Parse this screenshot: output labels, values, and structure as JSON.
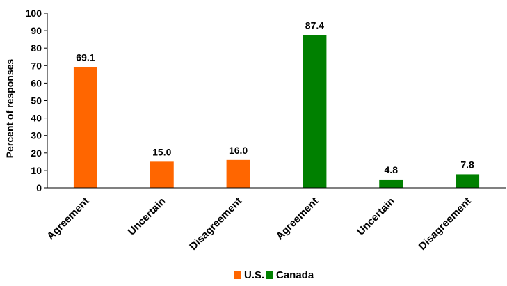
{
  "chart_data": {
    "type": "bar",
    "categories": [
      "Agreement",
      "Uncertain",
      "Disagreement",
      "Agreement",
      "Uncertain",
      "Disagreement"
    ],
    "series": [
      {
        "name": "U.S.",
        "color": "#FF6600",
        "values": [
          69.1,
          15.0,
          16.0,
          null,
          null,
          null
        ]
      },
      {
        "name": "Canada",
        "color": "#008000",
        "values": [
          null,
          null,
          null,
          87.4,
          4.8,
          7.8
        ]
      }
    ],
    "data_labels": [
      "69.1",
      "15.0",
      "16.0",
      "87.4",
      "4.8",
      "7.8"
    ],
    "title": "",
    "xlabel": "",
    "ylabel": "Percent of responses",
    "ylim": [
      0,
      100
    ],
    "yticks": [
      0,
      10,
      20,
      30,
      40,
      50,
      60,
      70,
      80,
      90,
      100
    ],
    "grid": false,
    "legend_position": "bottom"
  }
}
